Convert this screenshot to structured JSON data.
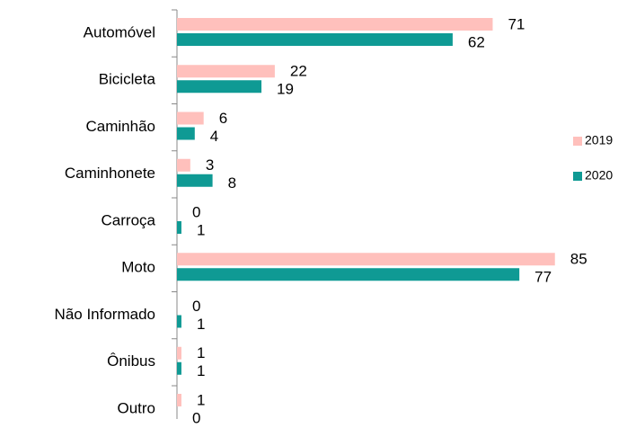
{
  "chart_data": {
    "type": "hbar",
    "categories": [
      "Automóvel",
      "Bicicleta",
      "Caminhão",
      "Caminhonete",
      "Carroça",
      "Moto",
      "Não Informado",
      "Ônibus",
      "Outro"
    ],
    "series": [
      {
        "name": "2019",
        "color": "#ffc0bc",
        "values": [
          71,
          22,
          6,
          3,
          0,
          85,
          0,
          1,
          1
        ]
      },
      {
        "name": "2020",
        "color": "#0f9a94",
        "values": [
          62,
          19,
          4,
          8,
          1,
          77,
          1,
          1,
          0
        ]
      }
    ],
    "xlim": [
      0,
      100
    ],
    "legend": "right"
  }
}
